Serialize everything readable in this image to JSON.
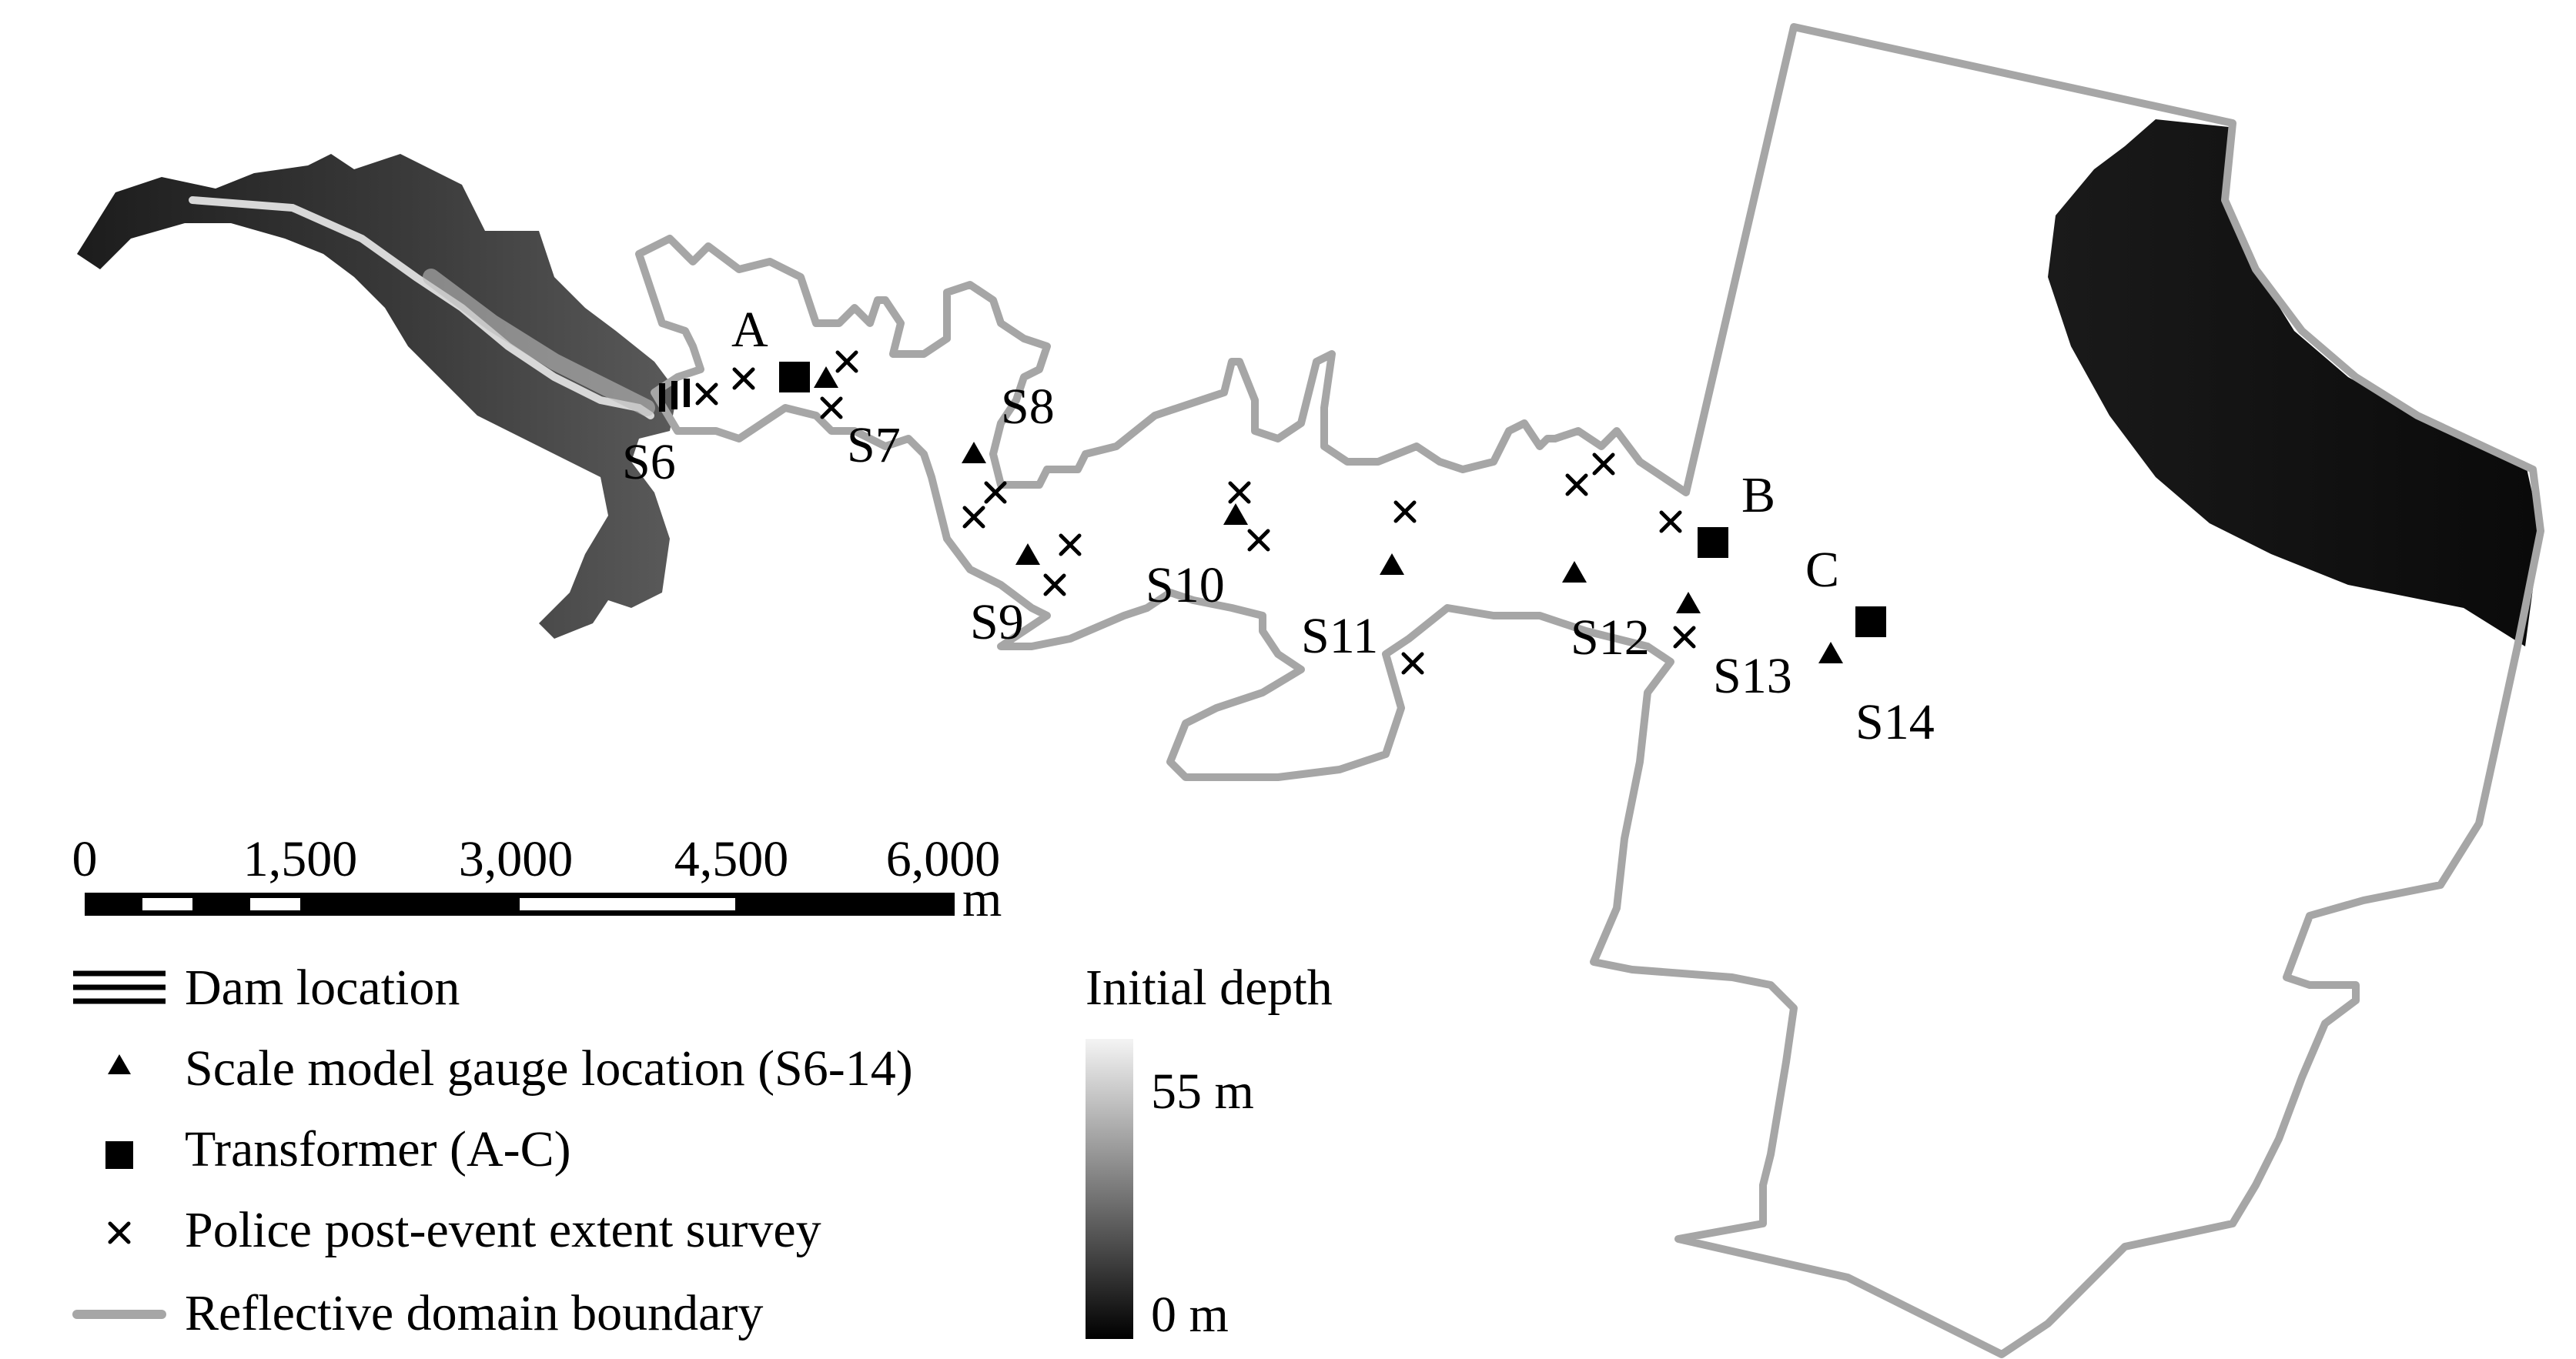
{
  "labels": {
    "transformers": [
      "A",
      "B",
      "C"
    ],
    "gauges": [
      "S6",
      "S7",
      "S8",
      "S9",
      "S10",
      "S11",
      "S12",
      "S13",
      "S14"
    ]
  },
  "scale_bar": {
    "ticks": [
      "0",
      "1,500",
      "3,000",
      "4,500",
      "6,000"
    ],
    "unit": "m"
  },
  "legend": {
    "dam": "Dam location",
    "gauge": "Scale model gauge location (S6-14)",
    "transformer": "Transformer (A-C)",
    "survey": "Police post-event extent survey",
    "boundary": "Reflective domain boundary"
  },
  "depth_legend": {
    "title": "Initial depth",
    "max": "55 m",
    "min": "0 m"
  },
  "colors": {
    "boundary": "#a6a6a6",
    "reservoir_shallow": "#1a1a1a",
    "reservoir_deep": "#f2f2f2",
    "marker": "#000000"
  }
}
